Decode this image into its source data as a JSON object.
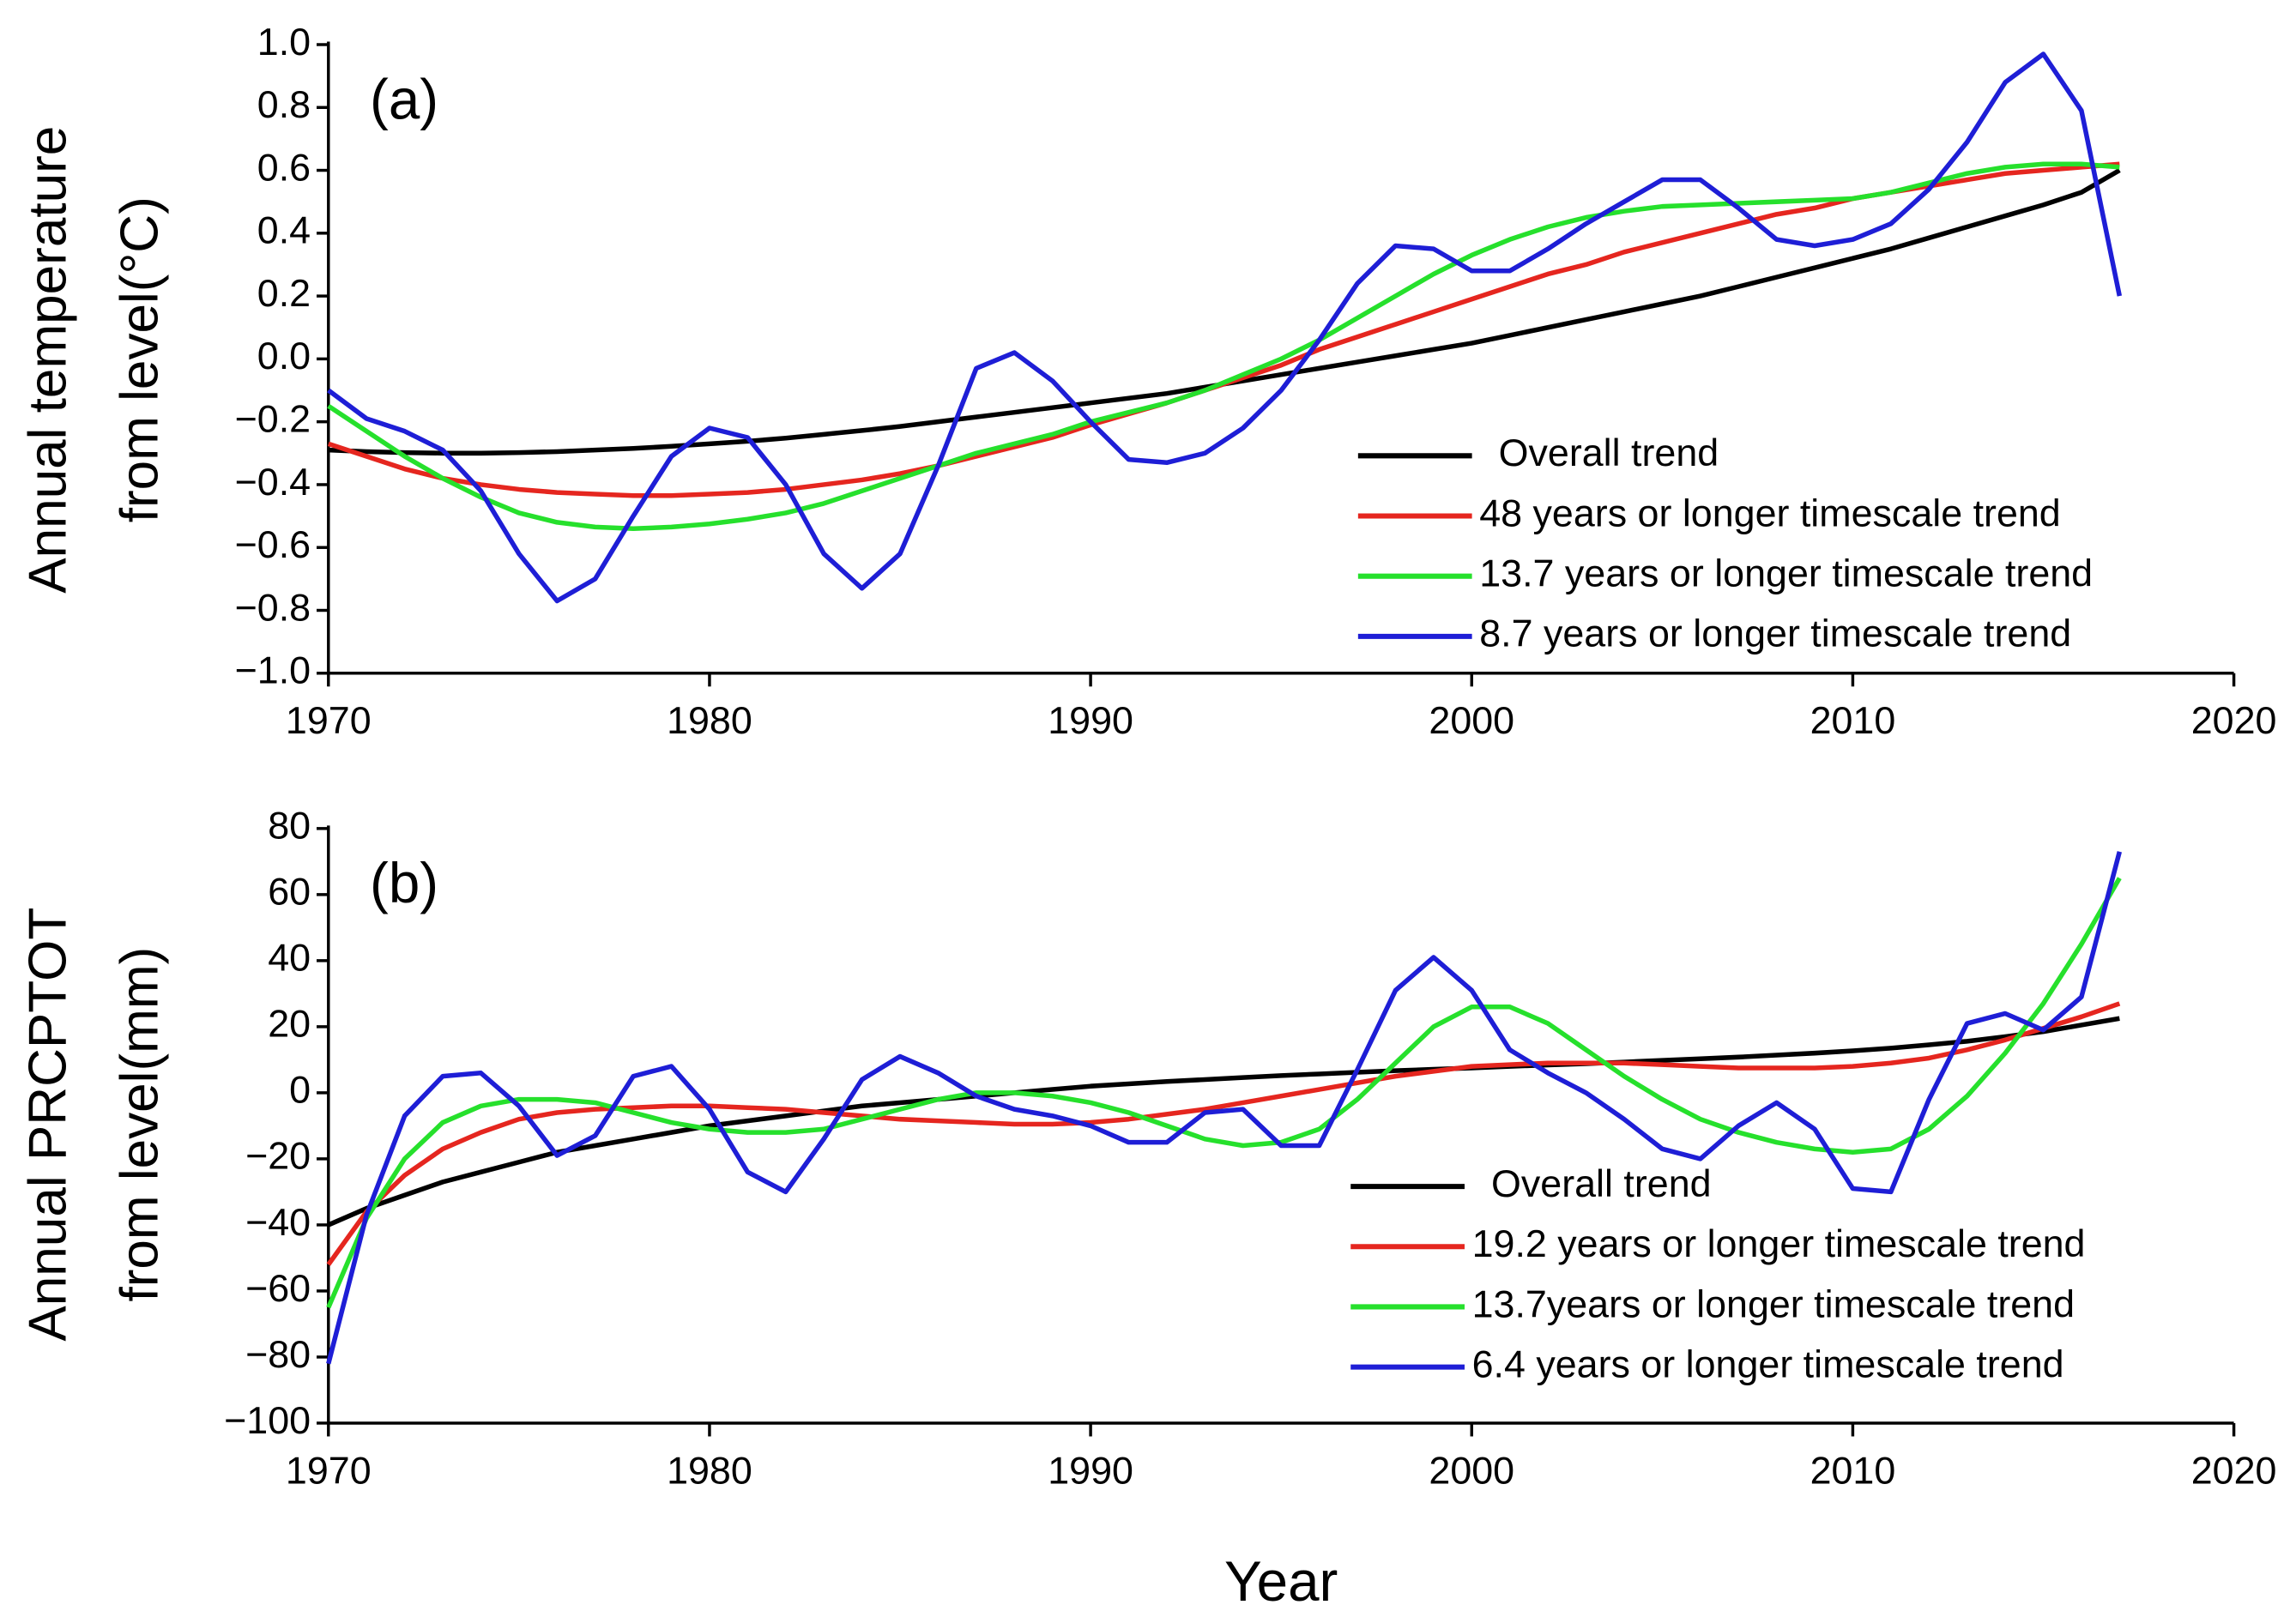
{
  "chart_data": [
    {
      "type": "line",
      "annotation": "(a)",
      "ylabel": [
        "Annual temperature",
        "from level(°C)"
      ],
      "x": [
        1970,
        1971,
        1972,
        1973,
        1974,
        1975,
        1976,
        1977,
        1978,
        1979,
        1980,
        1981,
        1982,
        1983,
        1984,
        1985,
        1986,
        1987,
        1988,
        1989,
        1990,
        1991,
        1992,
        1993,
        1994,
        1995,
        1996,
        1997,
        1998,
        1999,
        2000,
        2001,
        2002,
        2003,
        2004,
        2005,
        2006,
        2007,
        2008,
        2009,
        2010,
        2011,
        2012,
        2013,
        2014,
        2015,
        2016,
        2017
      ],
      "xlim": [
        1970,
        2020
      ],
      "xticks": [
        1970,
        1980,
        1990,
        2000,
        2010,
        2020
      ],
      "ylim": [
        -1,
        1
      ],
      "yticks": [
        {
          "value": -1,
          "label": "−1.0"
        },
        {
          "value": -0.8,
          "label": "−0.8"
        },
        {
          "value": -0.6,
          "label": "−0.6"
        },
        {
          "value": -0.4,
          "label": "−0.4"
        },
        {
          "value": -0.2,
          "label": "−0.2"
        },
        {
          "value": 0,
          "label": "0.0"
        },
        0.2,
        0.4,
        0.6,
        0.8,
        {
          "value": 1,
          "label": "1.0"
        }
      ],
      "legend": "lower right",
      "series": [
        {
          "name": "Overall trend",
          "color": "#000000",
          "values": [
            -0.29,
            -0.295,
            -0.298,
            -0.3,
            -0.3,
            -0.298,
            -0.295,
            -0.29,
            -0.285,
            -0.278,
            -0.27,
            -0.262,
            -0.252,
            -0.24,
            -0.228,
            -0.215,
            -0.2,
            -0.185,
            -0.17,
            -0.155,
            -0.14,
            -0.125,
            -0.11,
            -0.09,
            -0.07,
            -0.05,
            -0.03,
            -0.01,
            0.01,
            0.03,
            0.05,
            0.075,
            0.1,
            0.125,
            0.15,
            0.175,
            0.2,
            0.23,
            0.26,
            0.29,
            0.32,
            0.35,
            0.385,
            0.42,
            0.455,
            0.49,
            0.53,
            0.6
          ]
        },
        {
          "name": "48 years or longer timescale trend",
          "color": "#e5261f",
          "values": [
            -0.27,
            -0.31,
            -0.35,
            -0.38,
            -0.4,
            -0.415,
            -0.425,
            -0.43,
            -0.435,
            -0.435,
            -0.43,
            -0.425,
            -0.415,
            -0.4,
            -0.385,
            -0.365,
            -0.34,
            -0.31,
            -0.28,
            -0.25,
            -0.21,
            -0.175,
            -0.14,
            -0.1,
            -0.06,
            -0.02,
            0.03,
            0.07,
            0.11,
            0.15,
            0.19,
            0.23,
            0.27,
            0.3,
            0.34,
            0.37,
            0.4,
            0.43,
            0.46,
            0.48,
            0.51,
            0.53,
            0.55,
            0.57,
            0.59,
            0.6,
            0.61,
            0.62
          ]
        },
        {
          "name": "13.7 years or longer timescale trend",
          "color": "#26e02c",
          "values": [
            -0.15,
            -0.23,
            -0.31,
            -0.38,
            -0.44,
            -0.49,
            -0.52,
            -0.535,
            -0.54,
            -0.535,
            -0.525,
            -0.51,
            -0.49,
            -0.46,
            -0.42,
            -0.38,
            -0.34,
            -0.3,
            -0.27,
            -0.24,
            -0.2,
            -0.17,
            -0.14,
            -0.1,
            -0.05,
            0,
            0.06,
            0.13,
            0.2,
            0.27,
            0.33,
            0.38,
            0.42,
            0.45,
            0.47,
            0.485,
            0.49,
            0.495,
            0.5,
            0.505,
            0.51,
            0.53,
            0.56,
            0.59,
            0.61,
            0.62,
            0.62,
            0.61
          ]
        },
        {
          "name": "8.7 years or longer timescale trend",
          "color": "#1e1ed6",
          "values": [
            -0.1,
            -0.19,
            -0.23,
            -0.29,
            -0.42,
            -0.62,
            -0.77,
            -0.7,
            -0.5,
            -0.31,
            -0.22,
            -0.25,
            -0.4,
            -0.62,
            -0.73,
            -0.62,
            -0.34,
            -0.03,
            0.02,
            -0.07,
            -0.2,
            -0.32,
            -0.33,
            -0.3,
            -0.22,
            -0.1,
            0.06,
            0.24,
            0.36,
            0.35,
            0.28,
            0.28,
            0.35,
            0.43,
            0.5,
            0.57,
            0.57,
            0.48,
            0.38,
            0.36,
            0.38,
            0.43,
            0.54,
            0.69,
            0.88,
            0.97,
            0.79,
            0.2
          ]
        }
      ]
    },
    {
      "type": "line",
      "annotation": "(b)",
      "ylabel": [
        "Annual PRCPTOT",
        "from level(mm)"
      ],
      "xlabel": "Year",
      "x": [
        1970,
        1971,
        1972,
        1973,
        1974,
        1975,
        1976,
        1977,
        1978,
        1979,
        1980,
        1981,
        1982,
        1983,
        1984,
        1985,
        1986,
        1987,
        1988,
        1989,
        1990,
        1991,
        1992,
        1993,
        1994,
        1995,
        1996,
        1997,
        1998,
        1999,
        2000,
        2001,
        2002,
        2003,
        2004,
        2005,
        2006,
        2007,
        2008,
        2009,
        2010,
        2011,
        2012,
        2013,
        2014,
        2015,
        2016,
        2017
      ],
      "xlim": [
        1970,
        2020
      ],
      "xticks": [
        1970,
        1980,
        1990,
        2000,
        2010,
        2020
      ],
      "ylim": [
        -100,
        80
      ],
      "yticks": [
        {
          "value": -100,
          "label": "−100"
        },
        {
          "value": -80,
          "label": "−80"
        },
        {
          "value": -60,
          "label": "−60"
        },
        {
          "value": -40,
          "label": "−40"
        },
        {
          "value": -20,
          "label": "−20"
        },
        0,
        20,
        40,
        60,
        80
      ],
      "legend": "lower right",
      "series": [
        {
          "name": "Overall trend",
          "color": "#000000",
          "values": [
            -40,
            -35,
            -31,
            -27,
            -24,
            -21,
            -18,
            -16,
            -14,
            -12,
            -10,
            -8.5,
            -7,
            -5.5,
            -4,
            -3,
            -2,
            -1,
            0,
            1,
            2,
            2.7,
            3.4,
            4,
            4.6,
            5.2,
            5.7,
            6.2,
            6.7,
            7.1,
            7.5,
            8,
            8.4,
            8.8,
            9.3,
            9.8,
            10.3,
            10.8,
            11.4,
            12,
            12.7,
            13.5,
            14.5,
            15.6,
            17,
            18.5,
            20.5,
            22.5
          ]
        },
        {
          "name": "19.2 years or longer timescale trend",
          "color": "#e5261f",
          "values": [
            -52,
            -36,
            -25,
            -17,
            -12,
            -8,
            -6,
            -5,
            -4.5,
            -4,
            -4,
            -4.5,
            -5,
            -6,
            -7,
            -8,
            -8.5,
            -9,
            -9.5,
            -9.5,
            -9,
            -8,
            -6.5,
            -5,
            -3,
            -1,
            1,
            3,
            5,
            6.5,
            8,
            8.5,
            9,
            9,
            9,
            8.5,
            8,
            7.5,
            7.5,
            7.5,
            8,
            9,
            10.5,
            13,
            16,
            19.5,
            23,
            27
          ]
        },
        {
          "name": "13.7years or longer timescale trend",
          "color": "#26e02c",
          "values": [
            -65,
            -38,
            -20,
            -9,
            -4,
            -2,
            -2,
            -3,
            -6,
            -9,
            -11,
            -12,
            -12,
            -11,
            -8,
            -5,
            -2,
            0,
            0,
            -1,
            -3,
            -6,
            -10,
            -14,
            -16,
            -15,
            -11,
            -2,
            9,
            20,
            26,
            26,
            21,
            13,
            5,
            -2,
            -8,
            -12,
            -15,
            -17,
            -18,
            -17,
            -11,
            -1,
            12,
            27,
            45,
            65
          ]
        },
        {
          "name": "6.4 years or longer timescale trend",
          "color": "#1e1ed6",
          "values": [
            -82,
            -37,
            -7,
            5,
            6,
            -4,
            -19,
            -13,
            5,
            8,
            -5,
            -24,
            -30,
            -14,
            4,
            11,
            6,
            -1,
            -5,
            -7,
            -10,
            -15,
            -15,
            -6,
            -5,
            -16,
            -16,
            7,
            31,
            41,
            31,
            13,
            6,
            0,
            -8,
            -17,
            -20,
            -10,
            -3,
            -11,
            -29,
            -30,
            -2,
            21,
            24,
            19,
            29,
            73
          ]
        }
      ]
    }
  ]
}
